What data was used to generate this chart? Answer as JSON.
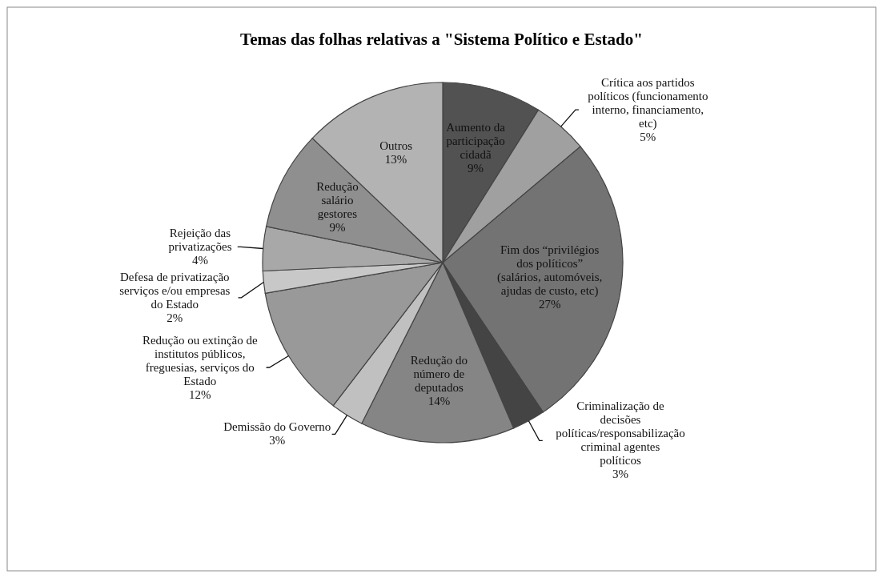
{
  "chart_data": {
    "type": "pie",
    "title": "Temas das folhas relativas a \"Sistema Político e Estado\"",
    "categories": [
      "Aumento da participação cidadã",
      "Crítica aos partidos políticos (funcionamento interno, financiamento, etc)",
      "Fim dos “privilégios dos políticos” (salários, automóveis, ajudas de custo, etc)",
      "Criminalização de decisões políticas/responsabilização criminal agentes políticos",
      "Redução do número de deputados",
      "Demissão do Governo",
      "Redução ou extinção de institutos públicos, freguesias, serviços do Estado",
      "Defesa de privatização serviços e/ou empresas do Estado",
      "Rejeição das privatizações",
      "Redução salário gestores",
      "Outros"
    ],
    "values": [
      9,
      5,
      27,
      3,
      14,
      3,
      12,
      2,
      4,
      9,
      13
    ],
    "value_labels": [
      "9%",
      "5%",
      "27%",
      "3%",
      "14%",
      "3%",
      "12%",
      "2%",
      "4%",
      "9%",
      "13%"
    ],
    "colors": [
      "#525252",
      "#a0a0a0",
      "#737373",
      "#444444",
      "#858585",
      "#c0c0c0",
      "#999999",
      "#c8c8c8",
      "#a8a8a8",
      "#8f8f8f",
      "#b3b3b3"
    ]
  }
}
